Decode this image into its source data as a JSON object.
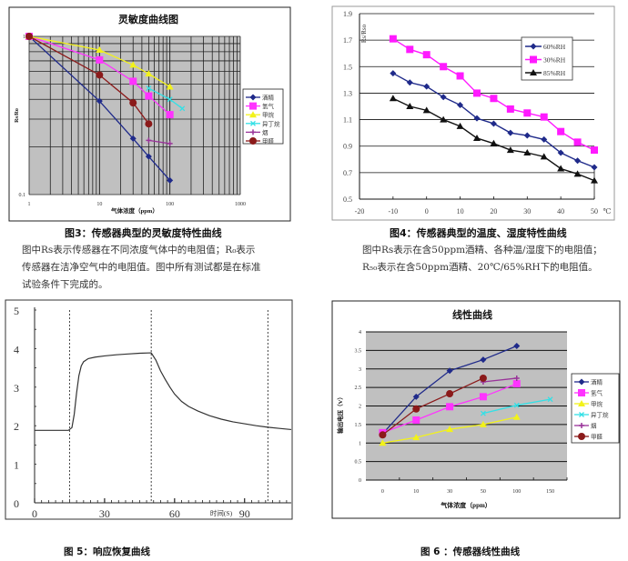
{
  "colors": {
    "alcohol": "#1f2a8a",
    "hydrogen": "#ff33ff",
    "methane": "#f2f21a",
    "isobutane": "#33e0e6",
    "smoke": "#993399",
    "formaldehyde": "#8b1a1a",
    "rh60": "#1f2a8a",
    "rh30": "#ff1aff",
    "rh85": "#111111",
    "plot_bg": "#c0c0c0"
  },
  "captions": {
    "fig3": "图3：传感器典型的灵敏度特性曲线",
    "fig3_note": [
      "图中Rs表示传感器在不同浓度气体中的电阻值；R₀表示",
      "传感器在洁净空气中的电阻值。图中所有测试都是在标准",
      "试验条件下完成的。"
    ],
    "fig4": "图4：传感器典型的温度、湿度特性曲线",
    "fig4_note": [
      "图中Rs表示在含50ppm酒精、各种温/湿度下的电阻值；",
      "R₅₀表示在含50ppm酒精、20℃/65%RH下的电阻值。"
    ],
    "fig5": "图 5：响应恢复曲线",
    "fig6": "图 6 ：传感器线性曲线"
  },
  "chart_data": [
    {
      "id": "sensitivity",
      "type": "line",
      "title": "灵敏度曲线图",
      "xlabel": "气体浓度（ppm）",
      "ylabel": "Rs/Ro",
      "xscale": "log",
      "yscale": "log",
      "xlim": [
        1,
        1000
      ],
      "ylim": [
        0.1,
        1
      ],
      "xticks": [
        "1",
        "10",
        "100",
        "1000"
      ],
      "yticks": [
        "0.1",
        "1"
      ],
      "grid": true,
      "legend": "right",
      "series": [
        {
          "name": "酒精",
          "key": "alcohol",
          "marker": "diamond",
          "points": [
            [
              1,
              1
            ],
            [
              10,
              0.39
            ],
            [
              30,
              0.226
            ],
            [
              50,
              0.174
            ],
            [
              100,
              0.123
            ]
          ]
        },
        {
          "name": "氢气",
          "key": "hydrogen",
          "marker": "square",
          "points": [
            [
              1,
              1
            ],
            [
              10,
              0.71
            ],
            [
              30,
              0.52
            ],
            [
              50,
              0.42
            ],
            [
              100,
              0.32
            ]
          ]
        },
        {
          "name": "甲烷",
          "key": "methane",
          "marker": "triangle",
          "points": [
            [
              1,
              1
            ],
            [
              10,
              0.82
            ],
            [
              30,
              0.66
            ],
            [
              50,
              0.58
            ],
            [
              100,
              0.48
            ]
          ]
        },
        {
          "name": "异丁烷",
          "key": "isobutane",
          "marker": "x",
          "points": [
            [
              50,
              0.47
            ],
            [
              100,
              0.4
            ],
            [
              150,
              0.35
            ]
          ]
        },
        {
          "name": "烟",
          "key": "smoke",
          "marker": "star",
          "points": [
            [
              50,
              0.22
            ],
            [
              100,
              0.21
            ]
          ]
        },
        {
          "name": "甲醛",
          "key": "formaldehyde",
          "marker": "circle",
          "points": [
            [
              1,
              1
            ],
            [
              10,
              0.57
            ],
            [
              30,
              0.38
            ],
            [
              50,
              0.28
            ]
          ]
        }
      ]
    },
    {
      "id": "temp-humidity",
      "type": "line",
      "title": "",
      "xlabel": "℃",
      "ylabel": "Rs/Rso",
      "xlim": [
        -20,
        50
      ],
      "ylim": [
        0.5,
        1.9
      ],
      "xticks": [
        "-20",
        "-10",
        "0",
        "10",
        "20",
        "30",
        "40",
        "50"
      ],
      "yticks": [
        "0.5",
        "0.7",
        "0.9",
        "1.1",
        "1.3",
        "1.5",
        "1.7",
        "1.9"
      ],
      "grid": true,
      "legend": "top-right",
      "x": [
        -10,
        -5,
        0,
        5,
        10,
        15,
        20,
        25,
        30,
        35,
        40,
        45,
        50
      ],
      "series": [
        {
          "name": "60%RH",
          "key": "rh60",
          "marker": "diamond",
          "values": [
            1.45,
            1.38,
            1.35,
            1.27,
            1.21,
            1.11,
            1.07,
            1.0,
            0.98,
            0.95,
            0.85,
            0.79,
            0.74
          ]
        },
        {
          "name": "30%RH",
          "key": "rh30",
          "marker": "square",
          "values": [
            1.71,
            1.63,
            1.59,
            1.5,
            1.43,
            1.3,
            1.26,
            1.18,
            1.15,
            1.12,
            1.01,
            0.93,
            0.87
          ]
        },
        {
          "name": "85%RH",
          "key": "rh85",
          "marker": "triangle",
          "values": [
            1.26,
            1.2,
            1.17,
            1.1,
            1.05,
            0.96,
            0.92,
            0.87,
            0.85,
            0.82,
            0.73,
            0.69,
            0.64
          ]
        }
      ]
    },
    {
      "id": "response-recovery",
      "type": "line",
      "title": "",
      "xlabel": "时间(S)",
      "ylabel": "",
      "xlim": [
        0,
        110
      ],
      "ylim": [
        0,
        5
      ],
      "xticks": [
        "0",
        "30",
        "60",
        "90"
      ],
      "yticks": [
        "0",
        "1",
        "2",
        "3",
        "4",
        "5"
      ],
      "grid": false,
      "markers_dashed_x": [
        15,
        50,
        100
      ],
      "series": [
        {
          "name": "response",
          "points": [
            [
              0,
              1.88
            ],
            [
              14.5,
              1.88
            ],
            [
              16,
              1.95
            ],
            [
              17,
              2.3
            ],
            [
              18,
              2.85
            ],
            [
              19,
              3.3
            ],
            [
              20,
              3.55
            ],
            [
              21,
              3.66
            ],
            [
              23,
              3.74
            ],
            [
              26,
              3.78
            ],
            [
              30,
              3.81
            ],
            [
              35,
              3.84
            ],
            [
              40,
              3.86
            ],
            [
              45,
              3.88
            ],
            [
              50,
              3.89
            ],
            [
              52,
              3.7
            ],
            [
              54,
              3.42
            ],
            [
              56,
              3.2
            ],
            [
              58,
              3.0
            ],
            [
              60,
              2.82
            ],
            [
              63,
              2.63
            ],
            [
              66,
              2.5
            ],
            [
              70,
              2.38
            ],
            [
              75,
              2.26
            ],
            [
              80,
              2.17
            ],
            [
              85,
              2.1
            ],
            [
              90,
              2.05
            ],
            [
              95,
              2.0
            ],
            [
              100,
              1.96
            ],
            [
              105,
              1.93
            ],
            [
              110,
              1.9
            ]
          ]
        }
      ]
    },
    {
      "id": "linearity",
      "type": "line",
      "title": "线性曲线",
      "xlabel": "气体浓度（ppm）",
      "ylabel": "输出电压（V）",
      "categories": [
        "0",
        "10",
        "30",
        "50",
        "100",
        "150"
      ],
      "ylim": [
        0,
        4
      ],
      "yticks": [
        "0",
        "0.5",
        "1",
        "1.5",
        "2",
        "2.5",
        "3",
        "3.5",
        "4"
      ],
      "grid": true,
      "legend": "right",
      "series": [
        {
          "name": "酒精",
          "key": "alcohol",
          "marker": "diamond",
          "values": [
            1.25,
            2.25,
            2.95,
            3.25,
            3.62,
            null
          ]
        },
        {
          "name": "氢气",
          "key": "hydrogen",
          "marker": "square",
          "values": [
            1.28,
            1.62,
            1.98,
            2.25,
            2.6,
            null
          ]
        },
        {
          "name": "甲烷",
          "key": "methane",
          "marker": "triangle",
          "values": [
            1.0,
            1.15,
            1.37,
            1.5,
            1.7,
            null
          ]
        },
        {
          "name": "异丁烷",
          "key": "isobutane",
          "marker": "x",
          "values": [
            null,
            null,
            null,
            1.8,
            2.02,
            2.18
          ]
        },
        {
          "name": "烟",
          "key": "smoke",
          "marker": "star",
          "values": [
            null,
            null,
            null,
            2.65,
            2.75,
            null
          ]
        },
        {
          "name": "甲醛",
          "key": "formaldehyde",
          "marker": "circle",
          "values": [
            1.22,
            1.92,
            2.33,
            2.75,
            null,
            null
          ]
        }
      ]
    }
  ]
}
